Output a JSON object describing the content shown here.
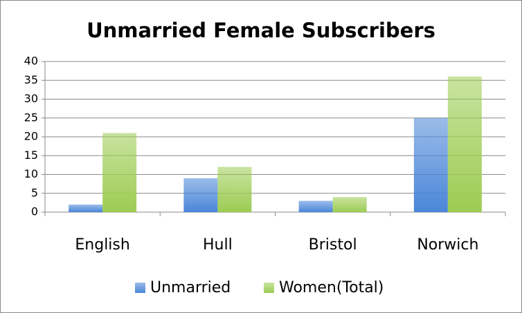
{
  "chart_data": {
    "type": "bar",
    "title": "Unmarried Female Subscribers",
    "categories": [
      "English",
      "Hull",
      "Bristol",
      "Norwich"
    ],
    "series": [
      {
        "name": "Unmarried",
        "color": "#4a86d8",
        "values": [
          2,
          9,
          3,
          25
        ]
      },
      {
        "name": "Women(Total)",
        "color": "#9ccc52",
        "values": [
          21,
          12,
          4,
          36
        ]
      }
    ],
    "ylim": [
      0,
      40
    ],
    "yticks": [
      0,
      5,
      10,
      15,
      20,
      25,
      30,
      35,
      40
    ],
    "grid": true,
    "legend": "bottom"
  }
}
